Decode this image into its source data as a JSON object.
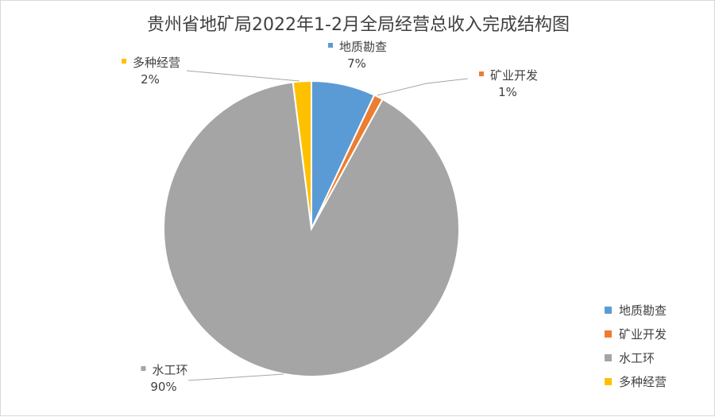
{
  "chart_data": {
    "type": "pie",
    "title": "贵州省地矿局2022年1-2月全局经营总收入完成结构图",
    "slices": [
      {
        "name": "地质勘查",
        "value": 7,
        "label": "7%",
        "color": "#5b9bd5"
      },
      {
        "name": "矿业开发",
        "value": 1,
        "label": "1%",
        "color": "#ed7d31"
      },
      {
        "name": "水工环",
        "value": 90,
        "label": "90%",
        "color": "#a5a5a5"
      },
      {
        "name": "多种经营",
        "value": 2,
        "label": "2%",
        "color": "#ffc000"
      }
    ],
    "legend_position": "bottom-right"
  }
}
